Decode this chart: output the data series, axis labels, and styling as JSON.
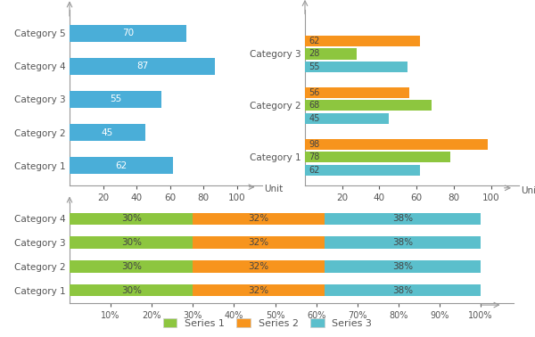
{
  "chart1": {
    "categories": [
      "Category 1",
      "Category 2",
      "Category 3",
      "Category 4",
      "Category 5"
    ],
    "values": [
      62,
      45,
      55,
      87,
      70
    ],
    "bar_color": "#4aaed8",
    "xlabel": "Unit",
    "xlim": [
      0,
      115
    ],
    "xticks": [
      20,
      40,
      60,
      80,
      100
    ]
  },
  "chart2": {
    "categories": [
      "Category 1",
      "Category 2",
      "Category 3"
    ],
    "series_order": [
      "Series 2",
      "Series 1",
      "Series 3"
    ],
    "series": {
      "Series 2": [
        98,
        56,
        62
      ],
      "Series 1": [
        78,
        68,
        28
      ],
      "Series 3": [
        62,
        45,
        55
      ]
    },
    "colors": {
      "Series 1": "#8dc63f",
      "Series 2": "#f7941d",
      "Series 3": "#5bbfcc"
    },
    "xlabel": "Unit",
    "xlim": [
      0,
      115
    ],
    "xticks": [
      20,
      40,
      60,
      80,
      100
    ]
  },
  "chart3": {
    "categories": [
      "Category 1",
      "Category 2",
      "Category 3",
      "Category 4"
    ],
    "series_order": [
      "Series 1",
      "Series 2",
      "Series 3"
    ],
    "series": {
      "Series 1": [
        30,
        30,
        30,
        30
      ],
      "Series 2": [
        32,
        32,
        32,
        32
      ],
      "Series 3": [
        38,
        38,
        38,
        38
      ]
    },
    "colors": {
      "Series 1": "#8dc63f",
      "Series 2": "#f7941d",
      "Series 3": "#5bbfcc"
    },
    "xtick_vals": [
      10,
      20,
      30,
      40,
      50,
      60,
      70,
      80,
      90,
      100
    ],
    "xtick_labels": [
      "10%",
      "20%",
      "30%",
      "40%",
      "50%",
      "60%",
      "70%",
      "80%",
      "90%",
      "100%"
    ],
    "xlim": [
      0,
      108
    ]
  },
  "legend": {
    "labels": [
      "Series 1",
      "Series 2",
      "Series 3"
    ],
    "colors": [
      "#8dc63f",
      "#f7941d",
      "#5bbfcc"
    ]
  },
  "bg_color": "#ffffff",
  "text_color": "#555555",
  "font_size": 7.5,
  "label_fontsize": 7.5
}
